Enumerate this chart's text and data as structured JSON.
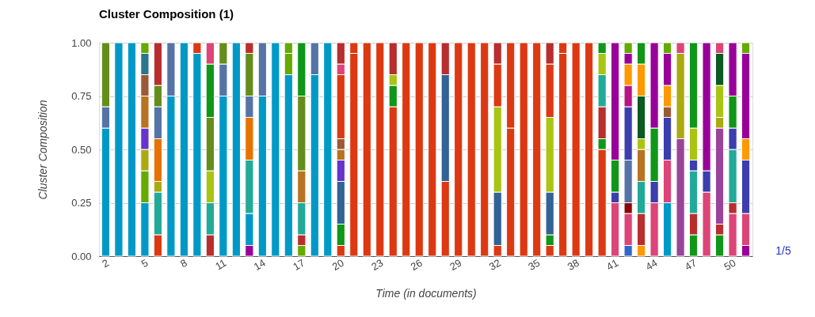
{
  "chart_data": {
    "type": "bar",
    "stacked": true,
    "title": "Cluster Composition (1)",
    "xlabel": "Time (in documents)",
    "ylabel": "Cluster Composition",
    "categories": [
      "2",
      null,
      null,
      "5",
      null,
      null,
      "8",
      null,
      null,
      "11",
      null,
      null,
      "14",
      null,
      null,
      "17",
      null,
      null,
      "20",
      null,
      null,
      "23",
      null,
      null,
      "26",
      null,
      null,
      "29",
      null,
      null,
      "32",
      null,
      null,
      "35",
      null,
      null,
      "38",
      null,
      null,
      "41",
      null,
      null,
      "44",
      null,
      null,
      "47",
      null,
      null,
      "50",
      null
    ],
    "ylim": [
      0,
      1
    ],
    "yticks": [
      {
        "value": 0,
        "label": "0.00"
      },
      {
        "value": 0.25,
        "label": "0.25"
      },
      {
        "value": 0.5,
        "label": "0.50"
      },
      {
        "value": 0.75,
        "label": "0.75"
      },
      {
        "value": 1,
        "label": "1.00"
      }
    ],
    "grid": "y",
    "annotations": [
      "1/5"
    ],
    "series": [
      {
        "values": [
          0.6,
          1,
          1,
          0.25,
          0.1,
          0.75,
          1,
          0.95,
          0.1,
          0.75,
          1,
          0.05,
          0.75,
          1,
          0.85,
          0.05,
          0.85,
          1,
          0.05,
          0.95,
          1,
          1,
          0.7,
          1,
          1,
          1,
          0.35,
          1,
          1,
          1,
          0.05,
          0.6,
          1,
          1,
          0.05,
          0.95,
          1,
          1,
          0.5,
          0.25,
          0.05,
          0.05,
          0.25,
          0.25,
          0.55,
          0.1,
          0.3,
          0.1,
          0.2,
          0.05
        ],
        "colors": [
          "#0099c6",
          "#0099c6",
          "#0099c6",
          "#0099c6",
          "#dc3912",
          "#0099c6",
          "#0099c6",
          "#0099c6",
          "#b82e2e",
          "#0099c6",
          "#0099c6",
          "#990099",
          "#0099c6",
          "#0099c6",
          "#0099c6",
          "#66aa00",
          "#0099c6",
          "#0099c6",
          "#dc3912",
          "#dc3912",
          "#dc3912",
          "#dc3912",
          "#dc3912",
          "#dc3912",
          "#dc3912",
          "#dc3912",
          "#dc3912",
          "#dc3912",
          "#dc3912",
          "#dc3912",
          "#dc3912",
          "#dc3912",
          "#dc3912",
          "#dc3912",
          "#dc3912",
          "#dc3912",
          "#dc3912",
          "#dc3912",
          "#dc3912",
          "#dd4477",
          "#3366cc",
          "#ff9900",
          "#dd4477",
          "#0099c6",
          "#994499",
          "#109618",
          "#dd4477",
          "#109618",
          "#dd4477",
          "#990099"
        ]
      },
      {
        "values": [
          0.1,
          null,
          null,
          0.15,
          0.2,
          0.25,
          null,
          0.05,
          0.15,
          0.15,
          null,
          0.15,
          0.25,
          null,
          0.1,
          0.05,
          0.15,
          null,
          0.1,
          0.05,
          null,
          null,
          0.1,
          null,
          null,
          null,
          0.5,
          null,
          null,
          null,
          0.25,
          0.4,
          null,
          null,
          0.05,
          0.05,
          null,
          null,
          0.05,
          0.05,
          0.15,
          0.15,
          0.1,
          0.2,
          0.4,
          0.1,
          0.1,
          0.05,
          0.05,
          0.15
        ],
        "colors": [
          "#5574a6",
          null,
          null,
          "#66aa00",
          "#22aa99",
          "#5574a6",
          null,
          "#dc3912",
          "#22aa99",
          "#5574a6",
          null,
          "#0099c6",
          "#5574a6",
          null,
          "#66aa00",
          "#b82e2e",
          "#5574a6",
          null,
          "#109618",
          "#dc3912",
          null,
          null,
          "#109618",
          null,
          null,
          null,
          "#316395",
          null,
          null,
          null,
          "#316395",
          "#dc3912",
          null,
          null,
          "#109618",
          "#dc3912",
          null,
          null,
          "#109618",
          "#3b3eac",
          "#dd4477",
          "#b82e2e",
          "#3b3eac",
          "#dd4477",
          "#aaaa11",
          "#b82e2e",
          "#3b3eac",
          "#b82e2e",
          "#b82e2e",
          "#dd4477"
        ]
      },
      {
        "values": [
          0.3,
          null,
          null,
          0.1,
          0.05,
          null,
          null,
          null,
          0.15,
          0.1,
          null,
          0.25,
          null,
          null,
          0.05,
          0.15,
          null,
          null,
          0.2,
          null,
          null,
          null,
          0.05,
          null,
          null,
          null,
          0.15,
          null,
          null,
          null,
          0.4,
          null,
          null,
          null,
          0.2,
          null,
          null,
          null,
          0.15,
          0.15,
          0.05,
          0.15,
          0.25,
          0.2,
          0.05,
          0.2,
          0.6,
          0.45,
          0.25,
          0.25
        ],
        "colors": [
          "#668d1c",
          null,
          null,
          "#aaaa11",
          "#aaaa11",
          null,
          null,
          null,
          "#a9c413",
          "#668d1c",
          null,
          "#22aa99",
          null,
          null,
          "#66aa00",
          "#22aa99",
          null,
          null,
          "#316395",
          null,
          null,
          null,
          "#a9c413",
          null,
          null,
          null,
          "#b82e2e",
          null,
          null,
          null,
          "#a9c413",
          null,
          null,
          null,
          "#316395",
          null,
          null,
          null,
          "#b82e2e",
          "#109618",
          "#8b0707",
          "#22aa99",
          "#109618",
          "#3b3eac",
          "#dd4477",
          "#22aa99",
          "#990099",
          "#994499",
          "#22aa99",
          "#3b3eac"
        ]
      },
      {
        "values": [
          null,
          null,
          null,
          0.1,
          0.2,
          null,
          null,
          null,
          0.25,
          null,
          null,
          0.2,
          null,
          null,
          null,
          0.15,
          null,
          null,
          0.1,
          null,
          null,
          null,
          0.15,
          null,
          null,
          null,
          null,
          null,
          null,
          null,
          0.2,
          null,
          null,
          null,
          0.35,
          null,
          null,
          null,
          0.15,
          0.55,
          0.2,
          0.15,
          0.4,
          0.05,
          null,
          0.05,
          null,
          0.05,
          0.1,
          0.1
        ],
        "colors": [
          null,
          null,
          null,
          "#6633cc",
          "#e67300",
          null,
          null,
          null,
          "#668d1c",
          null,
          null,
          "#e67300",
          null,
          null,
          null,
          "#b77322",
          null,
          null,
          "#6633cc",
          null,
          null,
          null,
          "#b82e2e",
          null,
          null,
          null,
          null,
          null,
          null,
          null,
          "#dc3912",
          null,
          null,
          null,
          "#a9c413",
          null,
          null,
          null,
          "#22aa99",
          "#990099",
          "#5574a6",
          "#b77322",
          "#990099",
          "#9c5935",
          null,
          "#3b3eac",
          null,
          "#aaaa11",
          "#3b3eac",
          "#ff9900"
        ]
      },
      {
        "values": [
          null,
          null,
          null,
          0.15,
          0.15,
          null,
          null,
          null,
          0.25,
          null,
          null,
          0.1,
          null,
          null,
          null,
          0.35,
          null,
          null,
          0.05,
          null,
          null,
          null,
          null,
          null,
          null,
          null,
          null,
          null,
          null,
          null,
          0.1,
          null,
          null,
          null,
          0.25,
          null,
          null,
          null,
          0.1,
          null,
          0.25,
          0.05,
          null,
          0.1,
          null,
          0.15,
          null,
          0.15,
          0.15,
          0.4
        ],
        "colors": [
          null,
          null,
          null,
          "#b77322",
          "#5574a6",
          null,
          null,
          null,
          "#109618",
          null,
          null,
          "#5574a6",
          null,
          null,
          null,
          "#668d1c",
          null,
          null,
          "#b77322",
          null,
          null,
          null,
          null,
          null,
          null,
          null,
          null,
          null,
          null,
          null,
          "#b82e2e",
          null,
          null,
          null,
          "#dc3912",
          null,
          null,
          null,
          "#a9c413",
          null,
          "#3b3eac",
          "#a9c413",
          null,
          "#ff9900",
          null,
          "#a9c413",
          null,
          "#a9c413",
          "#109618",
          "#990099"
        ]
      },
      {
        "values": [
          null,
          null,
          null,
          0.1,
          0.1,
          null,
          null,
          null,
          0.1,
          null,
          null,
          0.2,
          null,
          null,
          null,
          0.25,
          null,
          null,
          0.05,
          null,
          null,
          null,
          null,
          null,
          null,
          null,
          null,
          null,
          null,
          null,
          null,
          null,
          null,
          null,
          0.1,
          null,
          null,
          null,
          0.05,
          null,
          0.1,
          0.2,
          null,
          0.15,
          null,
          0.4,
          null,
          0.15,
          0.25,
          0.05
        ],
        "colors": [
          null,
          null,
          null,
          "#9c5935",
          "#668d1c",
          null,
          null,
          null,
          "#dd4477",
          null,
          null,
          "#668d1c",
          null,
          null,
          null,
          "#109618",
          null,
          null,
          "#9c5935",
          null,
          null,
          null,
          null,
          null,
          null,
          null,
          null,
          null,
          null,
          null,
          null,
          null,
          null,
          null,
          "#b82e2e",
          null,
          null,
          null,
          "#109618",
          null,
          "#b91383",
          "#0c5922",
          null,
          "#990099",
          null,
          "#109618",
          null,
          "#0c5922",
          "#990099",
          "#66aa00"
        ]
      },
      {
        "values": [
          null,
          null,
          null,
          0.1,
          0.2,
          null,
          null,
          null,
          null,
          null,
          null,
          0.05,
          null,
          null,
          null,
          null,
          null,
          null,
          0.3,
          null,
          null,
          null,
          null,
          null,
          null,
          null,
          null,
          null,
          null,
          null,
          null,
          null,
          null,
          null,
          null,
          null,
          null,
          null,
          null,
          null,
          0.1,
          0.15,
          null,
          0.05,
          null,
          null,
          null,
          0.05,
          null,
          null
        ],
        "colors": [
          null,
          null,
          null,
          "#2a778d",
          "#b82e2e",
          null,
          null,
          null,
          null,
          null,
          null,
          "#b82e2e",
          null,
          null,
          null,
          null,
          null,
          null,
          "#dc3912",
          null,
          null,
          null,
          null,
          null,
          null,
          null,
          null,
          null,
          null,
          null,
          null,
          null,
          null,
          null,
          null,
          null,
          null,
          null,
          null,
          null,
          "#ff9900",
          "#ff9900",
          null,
          "#66aa00",
          null,
          null,
          null,
          "#dd4477",
          null,
          null
        ]
      },
      {
        "values": [
          null,
          null,
          null,
          0.05,
          null,
          null,
          null,
          null,
          null,
          null,
          null,
          null,
          null,
          null,
          null,
          null,
          null,
          null,
          0.05,
          null,
          null,
          null,
          null,
          null,
          null,
          null,
          null,
          null,
          null,
          null,
          null,
          null,
          null,
          null,
          null,
          null,
          null,
          null,
          null,
          null,
          0.05,
          0.1,
          null,
          null,
          null,
          null,
          null,
          null,
          null,
          null
        ],
        "colors": [
          null,
          null,
          null,
          "#66aa00",
          null,
          null,
          null,
          null,
          null,
          null,
          null,
          null,
          null,
          null,
          null,
          null,
          null,
          null,
          "#dd4477",
          null,
          null,
          null,
          null,
          null,
          null,
          null,
          null,
          null,
          null,
          null,
          null,
          null,
          null,
          null,
          null,
          null,
          null,
          null,
          null,
          null,
          "#990099",
          "#109618",
          null,
          null,
          null,
          null,
          null,
          null,
          null,
          null
        ]
      },
      {
        "values": [
          null,
          null,
          null,
          null,
          null,
          null,
          null,
          null,
          null,
          null,
          null,
          null,
          null,
          null,
          null,
          null,
          null,
          null,
          0.1,
          null,
          null,
          null,
          null,
          null,
          null,
          null,
          null,
          null,
          null,
          null,
          null,
          null,
          null,
          null,
          null,
          null,
          null,
          null,
          null,
          null,
          0.05,
          null,
          null,
          null,
          null,
          null,
          null,
          null,
          null,
          null
        ],
        "colors": [
          null,
          null,
          null,
          null,
          null,
          null,
          null,
          null,
          null,
          null,
          null,
          null,
          null,
          null,
          null,
          null,
          null,
          null,
          "#b82e2e",
          null,
          null,
          null,
          null,
          null,
          null,
          null,
          null,
          null,
          null,
          null,
          null,
          null,
          null,
          null,
          null,
          null,
          null,
          null,
          null,
          null,
          "#66aa00",
          null,
          null,
          null,
          null,
          null,
          null,
          null,
          null,
          null
        ]
      }
    ]
  }
}
